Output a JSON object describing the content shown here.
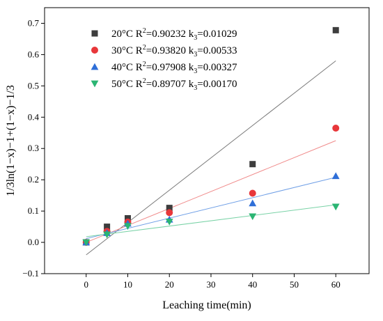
{
  "chart_data": {
    "type": "scatter",
    "title": "",
    "xlabel": "Leaching time(min)",
    "ylabel": "1/3ln(1−x)−1+(1−x)−1/3",
    "xlim": [
      -10,
      68
    ],
    "ylim": [
      -0.1,
      0.75
    ],
    "x_ticks": [
      0,
      10,
      20,
      30,
      40,
      50,
      60
    ],
    "y_ticks": [
      -0.1,
      0.0,
      0.1,
      0.2,
      0.3,
      0.4,
      0.5,
      0.6,
      0.7
    ],
    "grid": false,
    "legend_position": "top-left",
    "series": [
      {
        "name": "20°C R2=0.90232 k3=0.01029",
        "legend": {
          "temp": "20°C R",
          "sup": "2",
          "r2": "=0.90232 k",
          "sub": "3",
          "k": "=0.01029"
        },
        "marker": "square",
        "color": "#3d3d3d",
        "line_color": "#7a7a7a",
        "x": [
          0,
          5,
          10,
          20,
          40,
          60
        ],
        "y": [
          0.0,
          0.05,
          0.077,
          0.11,
          0.25,
          0.678
        ],
        "fit": [
          [
            0,
            -0.04
          ],
          [
            60,
            0.58
          ]
        ]
      },
      {
        "name": "30°C R2=0.93820 k3=0.00533",
        "legend": {
          "temp": "30°C R",
          "sup": "2",
          "r2": "=0.93820 k",
          "sub": "3",
          "k": "=0.00533"
        },
        "marker": "circle",
        "color": "#e8373a",
        "line_color": "#f08a8a",
        "x": [
          0,
          5,
          10,
          20,
          40,
          60
        ],
        "y": [
          0.0,
          0.035,
          0.065,
          0.095,
          0.157,
          0.365
        ],
        "fit": [
          [
            0,
            0.0
          ],
          [
            60,
            0.325
          ]
        ]
      },
      {
        "name": "40°C R2=0.97908 k3=0.00327",
        "legend": {
          "temp": "40°C R",
          "sup": "2",
          "r2": "=0.97908 k",
          "sub": "3",
          "k": "=0.00327"
        },
        "marker": "triangle-up",
        "color": "#2f6fd8",
        "line_color": "#6f9fe6",
        "x": [
          0,
          5,
          10,
          20,
          40,
          60
        ],
        "y": [
          0.0,
          0.03,
          0.06,
          0.073,
          0.125,
          0.212
        ],
        "fit": [
          [
            0,
            0.012
          ],
          [
            60,
            0.208
          ]
        ]
      },
      {
        "name": "50°C R2=0.89707 k3=0.00170",
        "legend": {
          "temp": "50°C R",
          "sup": "2",
          "r2": "=0.89707 k",
          "sub": "3",
          "k": "=0.00170"
        },
        "marker": "triangle-down",
        "color": "#2bb573",
        "line_color": "#79d2a6",
        "x": [
          0,
          5,
          10,
          20,
          40,
          60
        ],
        "y": [
          0.0,
          0.025,
          0.052,
          0.066,
          0.083,
          0.114
        ],
        "fit": [
          [
            0,
            0.018
          ],
          [
            60,
            0.12
          ]
        ]
      }
    ]
  }
}
